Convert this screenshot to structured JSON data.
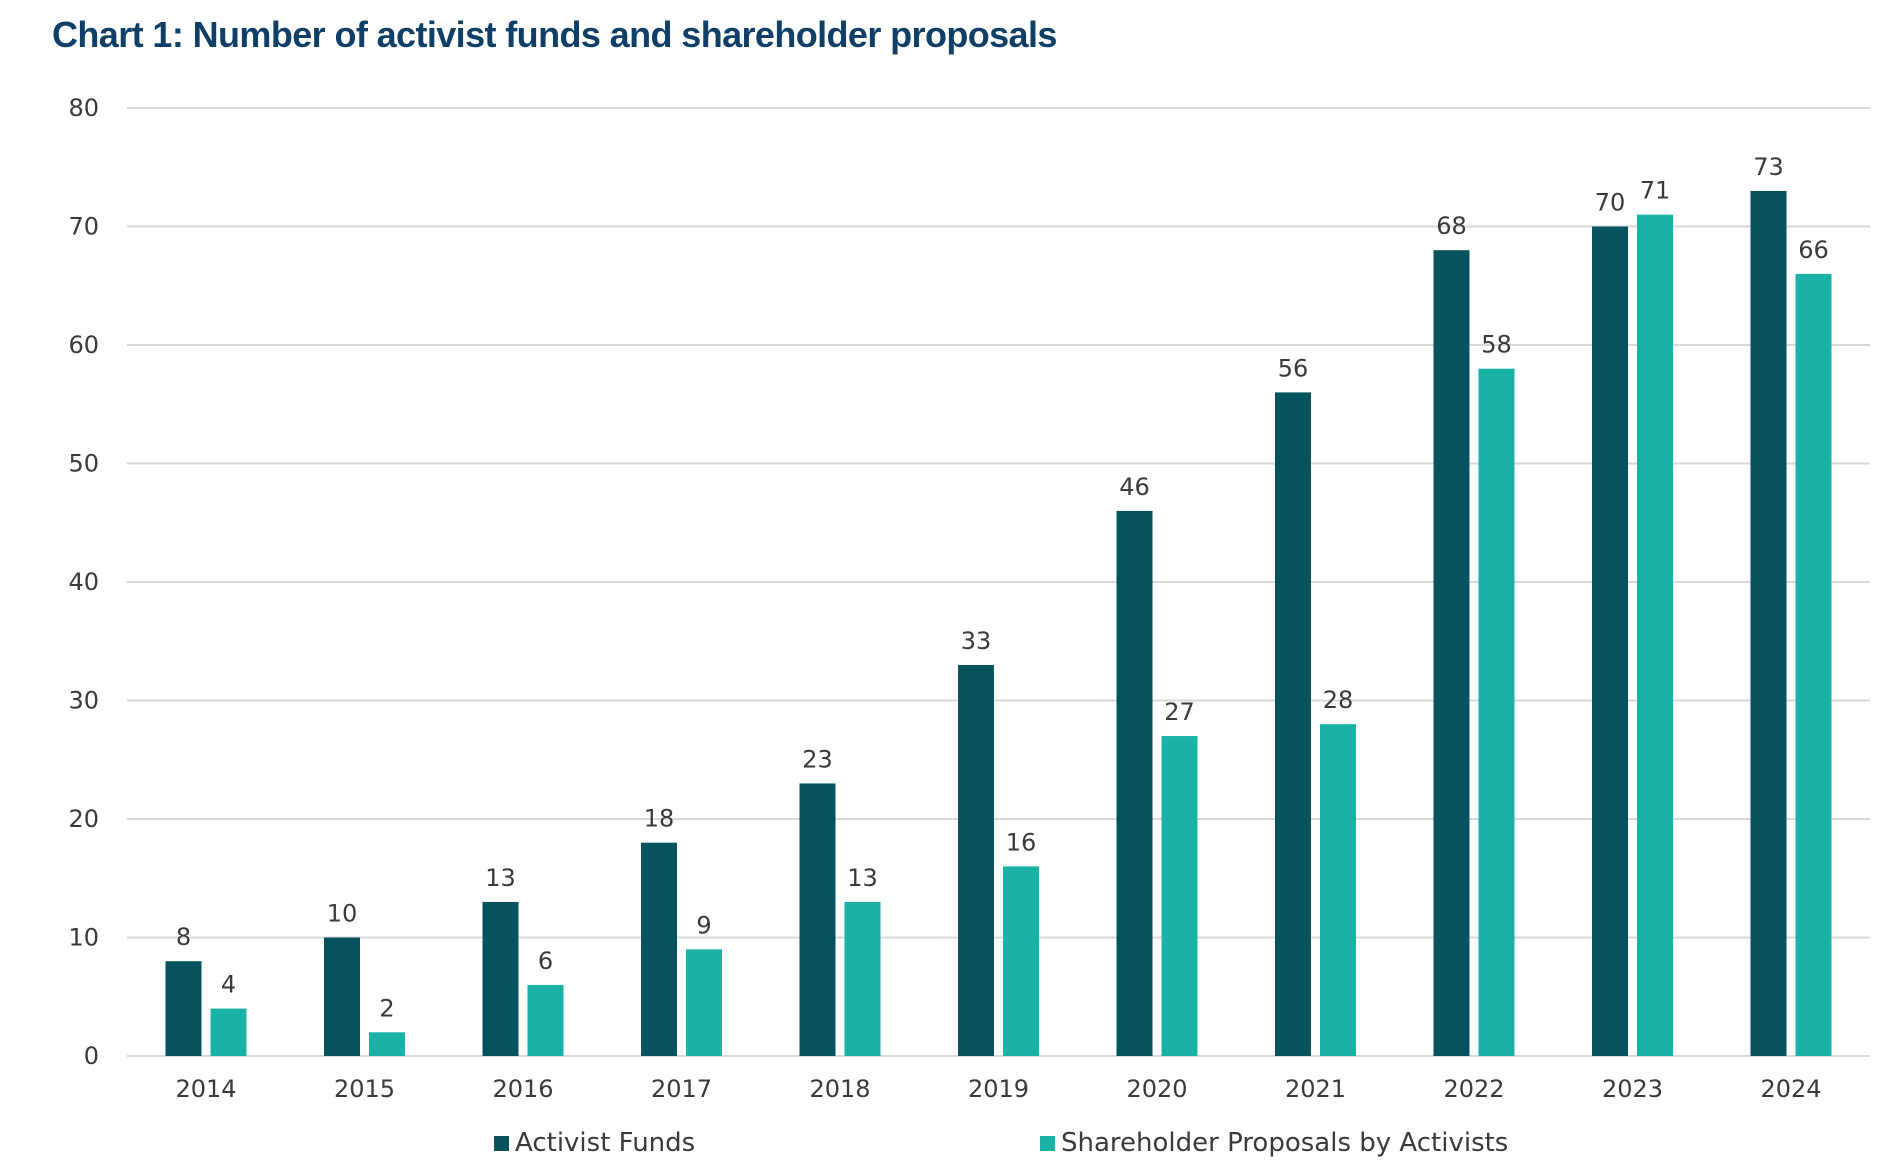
{
  "chart_data": {
    "type": "bar",
    "title": "Chart 1: Number of activist funds and shareholder proposals",
    "categories": [
      "2014",
      "2015",
      "2016",
      "2017",
      "2018",
      "2019",
      "2020",
      "2021",
      "2022",
      "2023",
      "2024"
    ],
    "series": [
      {
        "name": "Activist Funds",
        "color": "#06535f",
        "values": [
          8,
          10,
          13,
          18,
          23,
          33,
          46,
          56,
          68,
          70,
          73
        ]
      },
      {
        "name": "Shareholder Proposals by Activists",
        "color": "#1ab1a7",
        "values": [
          4,
          2,
          6,
          9,
          13,
          16,
          27,
          28,
          58,
          71,
          66
        ]
      }
    ],
    "ylim": [
      0,
      80
    ],
    "yticks": [
      0,
      10,
      20,
      30,
      40,
      50,
      60,
      70,
      80
    ],
    "grid": true,
    "legend_position": "bottom",
    "data_labels": true
  }
}
